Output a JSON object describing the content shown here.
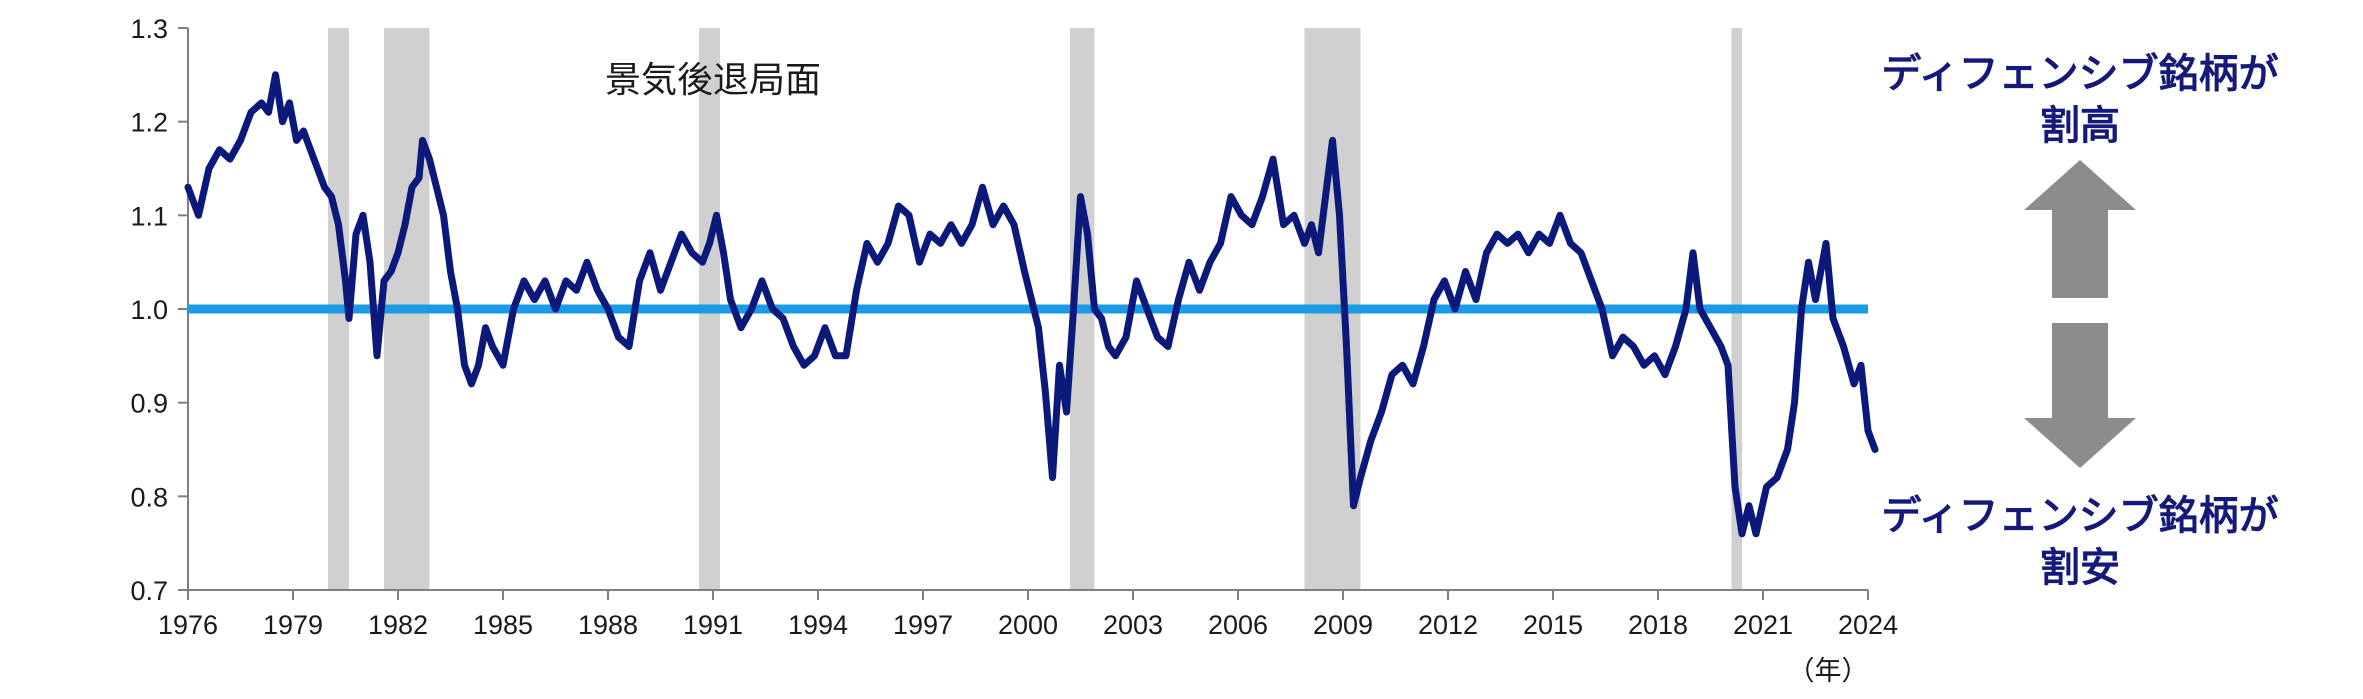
{
  "chart_data": {
    "type": "line",
    "title": "",
    "xlabel": "",
    "ylabel": "",
    "x_unit": "（年）",
    "ylim": [
      0.7,
      1.3
    ],
    "xlim": [
      1976,
      2024
    ],
    "y_ticks": [
      "1.3",
      "1.2",
      "1.1",
      "1.0",
      "0.9",
      "0.8",
      "0.7"
    ],
    "x_ticks": [
      "1976",
      "1979",
      "1982",
      "1985",
      "1988",
      "1991",
      "1994",
      "1997",
      "2000",
      "2003",
      "2006",
      "2009",
      "2012",
      "2015",
      "2018",
      "2021",
      "2024"
    ],
    "reference_line": {
      "value": 1.0,
      "color": "#1a9be6"
    },
    "recession_label": "景気後退局面",
    "recessions": [
      {
        "start": 1980.0,
        "end": 1980.6
      },
      {
        "start": 1981.6,
        "end": 1982.9
      },
      {
        "start": 1990.6,
        "end": 1991.2
      },
      {
        "start": 2001.2,
        "end": 2001.9
      },
      {
        "start": 2007.9,
        "end": 2009.5
      },
      {
        "start": 2020.1,
        "end": 2020.4
      }
    ],
    "series": [
      {
        "color": "#0b1a7a",
        "points": [
          [
            1976.0,
            1.13
          ],
          [
            1976.3,
            1.1
          ],
          [
            1976.6,
            1.15
          ],
          [
            1976.9,
            1.17
          ],
          [
            1977.2,
            1.16
          ],
          [
            1977.5,
            1.18
          ],
          [
            1977.8,
            1.21
          ],
          [
            1978.1,
            1.22
          ],
          [
            1978.3,
            1.21
          ],
          [
            1978.5,
            1.25
          ],
          [
            1978.7,
            1.2
          ],
          [
            1978.9,
            1.22
          ],
          [
            1979.1,
            1.18
          ],
          [
            1979.3,
            1.19
          ],
          [
            1979.5,
            1.17
          ],
          [
            1979.7,
            1.15
          ],
          [
            1979.9,
            1.13
          ],
          [
            1980.1,
            1.12
          ],
          [
            1980.3,
            1.09
          ],
          [
            1980.5,
            1.03
          ],
          [
            1980.6,
            0.99
          ],
          [
            1980.8,
            1.08
          ],
          [
            1981.0,
            1.1
          ],
          [
            1981.2,
            1.05
          ],
          [
            1981.4,
            0.95
          ],
          [
            1981.6,
            1.03
          ],
          [
            1981.8,
            1.04
          ],
          [
            1982.0,
            1.06
          ],
          [
            1982.2,
            1.09
          ],
          [
            1982.4,
            1.13
          ],
          [
            1982.6,
            1.14
          ],
          [
            1982.7,
            1.18
          ],
          [
            1982.9,
            1.16
          ],
          [
            1983.1,
            1.13
          ],
          [
            1983.3,
            1.1
          ],
          [
            1983.5,
            1.04
          ],
          [
            1983.7,
            1.0
          ],
          [
            1983.9,
            0.94
          ],
          [
            1984.1,
            0.92
          ],
          [
            1984.3,
            0.94
          ],
          [
            1984.5,
            0.98
          ],
          [
            1984.7,
            0.96
          ],
          [
            1985.0,
            0.94
          ],
          [
            1985.3,
            1.0
          ],
          [
            1985.6,
            1.03
          ],
          [
            1985.9,
            1.01
          ],
          [
            1986.2,
            1.03
          ],
          [
            1986.5,
            1.0
          ],
          [
            1986.8,
            1.03
          ],
          [
            1987.1,
            1.02
          ],
          [
            1987.4,
            1.05
          ],
          [
            1987.7,
            1.02
          ],
          [
            1988.0,
            1.0
          ],
          [
            1988.3,
            0.97
          ],
          [
            1988.6,
            0.96
          ],
          [
            1988.9,
            1.03
          ],
          [
            1989.2,
            1.06
          ],
          [
            1989.5,
            1.02
          ],
          [
            1989.8,
            1.05
          ],
          [
            1990.1,
            1.08
          ],
          [
            1990.4,
            1.06
          ],
          [
            1990.7,
            1.05
          ],
          [
            1990.9,
            1.07
          ],
          [
            1991.1,
            1.1
          ],
          [
            1991.3,
            1.06
          ],
          [
            1991.5,
            1.01
          ],
          [
            1991.8,
            0.98
          ],
          [
            1992.1,
            1.0
          ],
          [
            1992.4,
            1.03
          ],
          [
            1992.7,
            1.0
          ],
          [
            1993.0,
            0.99
          ],
          [
            1993.3,
            0.96
          ],
          [
            1993.6,
            0.94
          ],
          [
            1993.9,
            0.95
          ],
          [
            1994.2,
            0.98
          ],
          [
            1994.5,
            0.95
          ],
          [
            1994.8,
            0.95
          ],
          [
            1995.1,
            1.02
          ],
          [
            1995.4,
            1.07
          ],
          [
            1995.7,
            1.05
          ],
          [
            1996.0,
            1.07
          ],
          [
            1996.3,
            1.11
          ],
          [
            1996.6,
            1.1
          ],
          [
            1996.9,
            1.05
          ],
          [
            1997.2,
            1.08
          ],
          [
            1997.5,
            1.07
          ],
          [
            1997.8,
            1.09
          ],
          [
            1998.1,
            1.07
          ],
          [
            1998.4,
            1.09
          ],
          [
            1998.7,
            1.13
          ],
          [
            1999.0,
            1.09
          ],
          [
            1999.3,
            1.11
          ],
          [
            1999.6,
            1.09
          ],
          [
            1999.9,
            1.04
          ],
          [
            2000.1,
            1.01
          ],
          [
            2000.3,
            0.98
          ],
          [
            2000.5,
            0.91
          ],
          [
            2000.7,
            0.82
          ],
          [
            2000.9,
            0.94
          ],
          [
            2001.1,
            0.89
          ],
          [
            2001.3,
            1.0
          ],
          [
            2001.5,
            1.12
          ],
          [
            2001.7,
            1.08
          ],
          [
            2001.9,
            1.0
          ],
          [
            2002.1,
            0.99
          ],
          [
            2002.3,
            0.96
          ],
          [
            2002.5,
            0.95
          ],
          [
            2002.8,
            0.97
          ],
          [
            2003.1,
            1.03
          ],
          [
            2003.4,
            1.0
          ],
          [
            2003.7,
            0.97
          ],
          [
            2004.0,
            0.96
          ],
          [
            2004.3,
            1.01
          ],
          [
            2004.6,
            1.05
          ],
          [
            2004.9,
            1.02
          ],
          [
            2005.2,
            1.05
          ],
          [
            2005.5,
            1.07
          ],
          [
            2005.8,
            1.12
          ],
          [
            2006.1,
            1.1
          ],
          [
            2006.4,
            1.09
          ],
          [
            2006.7,
            1.12
          ],
          [
            2007.0,
            1.16
          ],
          [
            2007.3,
            1.09
          ],
          [
            2007.6,
            1.1
          ],
          [
            2007.9,
            1.07
          ],
          [
            2008.1,
            1.09
          ],
          [
            2008.3,
            1.06
          ],
          [
            2008.5,
            1.12
          ],
          [
            2008.7,
            1.18
          ],
          [
            2008.9,
            1.1
          ],
          [
            2009.1,
            0.96
          ],
          [
            2009.3,
            0.79
          ],
          [
            2009.5,
            0.82
          ],
          [
            2009.8,
            0.86
          ],
          [
            2010.1,
            0.89
          ],
          [
            2010.4,
            0.93
          ],
          [
            2010.7,
            0.94
          ],
          [
            2011.0,
            0.92
          ],
          [
            2011.3,
            0.96
          ],
          [
            2011.6,
            1.01
          ],
          [
            2011.9,
            1.03
          ],
          [
            2012.2,
            1.0
          ],
          [
            2012.5,
            1.04
          ],
          [
            2012.8,
            1.01
          ],
          [
            2013.1,
            1.06
          ],
          [
            2013.4,
            1.08
          ],
          [
            2013.7,
            1.07
          ],
          [
            2014.0,
            1.08
          ],
          [
            2014.3,
            1.06
          ],
          [
            2014.6,
            1.08
          ],
          [
            2014.9,
            1.07
          ],
          [
            2015.2,
            1.1
          ],
          [
            2015.5,
            1.07
          ],
          [
            2015.8,
            1.06
          ],
          [
            2016.1,
            1.03
          ],
          [
            2016.4,
            1.0
          ],
          [
            2016.7,
            0.95
          ],
          [
            2017.0,
            0.97
          ],
          [
            2017.3,
            0.96
          ],
          [
            2017.6,
            0.94
          ],
          [
            2017.9,
            0.95
          ],
          [
            2018.2,
            0.93
          ],
          [
            2018.5,
            0.96
          ],
          [
            2018.8,
            1.0
          ],
          [
            2019.0,
            1.06
          ],
          [
            2019.2,
            1.0
          ],
          [
            2019.5,
            0.98
          ],
          [
            2019.8,
            0.96
          ],
          [
            2020.0,
            0.94
          ],
          [
            2020.2,
            0.81
          ],
          [
            2020.4,
            0.76
          ],
          [
            2020.6,
            0.79
          ],
          [
            2020.8,
            0.76
          ],
          [
            2021.1,
            0.81
          ],
          [
            2021.4,
            0.82
          ],
          [
            2021.7,
            0.85
          ],
          [
            2021.9,
            0.9
          ],
          [
            2022.1,
            1.0
          ],
          [
            2022.3,
            1.05
          ],
          [
            2022.5,
            1.01
          ],
          [
            2022.8,
            1.07
          ],
          [
            2023.0,
            0.99
          ],
          [
            2023.3,
            0.96
          ],
          [
            2023.6,
            0.92
          ],
          [
            2023.8,
            0.94
          ],
          [
            2024.0,
            0.87
          ],
          [
            2024.2,
            0.85
          ]
        ]
      }
    ],
    "right_annotations": {
      "top": [
        "ディフェンシブ銘柄が",
        "割高"
      ],
      "bottom": [
        "ディフェンシブ銘柄が",
        "割安"
      ],
      "text_color": "#14197a",
      "arrow_color": "#8c8c8c"
    }
  }
}
